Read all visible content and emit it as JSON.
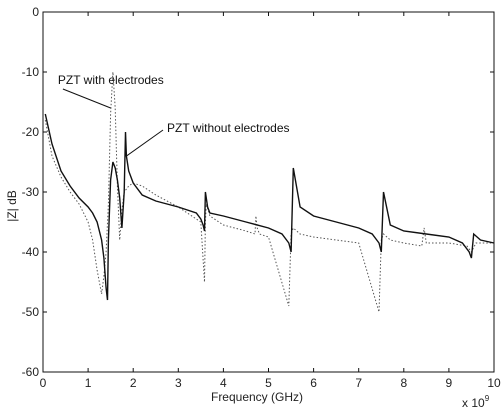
{
  "chart_data": {
    "type": "line",
    "title": "",
    "xlabel": "Frequency (GHz)",
    "ylabel": "|Z| dB",
    "x_exponent_label": "x 10",
    "x_exponent_power": "9",
    "xlim": [
      0,
      10
    ],
    "ylim": [
      -60,
      0
    ],
    "xticks": [
      "0",
      "1",
      "2",
      "3",
      "4",
      "5",
      "6",
      "7",
      "8",
      "9",
      "10"
    ],
    "yticks": [
      "0",
      "-10",
      "-20",
      "-30",
      "-40",
      "-50",
      "-60"
    ],
    "grid": false,
    "annotations": [
      {
        "text": "PZT with electrodes",
        "x": 1.55,
        "y": -12,
        "points_to": [
          1.5,
          -16
        ]
      },
      {
        "text": "PZT without electrodes",
        "x": 2.75,
        "y": -20,
        "points_to": [
          1.85,
          -24
        ]
      }
    ],
    "series": [
      {
        "name": "PZT with electrodes",
        "style": "dotted",
        "color": "#555555",
        "x": [
          0.05,
          0.2,
          0.4,
          0.6,
          0.8,
          1.0,
          1.1,
          1.2,
          1.3,
          1.35,
          1.4,
          1.45,
          1.5,
          1.55,
          1.6,
          1.65,
          1.7,
          1.75,
          1.8,
          1.9,
          2.0,
          2.2,
          2.5,
          3.0,
          3.5,
          3.58,
          3.6,
          3.62,
          3.7,
          4.0,
          4.5,
          4.7,
          4.72,
          4.75,
          4.8,
          5.0,
          5.45,
          5.5,
          5.55,
          5.7,
          6.0,
          6.5,
          7.0,
          7.45,
          7.5,
          7.55,
          7.7,
          8.0,
          8.4,
          8.45,
          8.5,
          8.7,
          9.0,
          9.4,
          9.5,
          9.6,
          9.8,
          10.0
        ],
        "y": [
          -18,
          -24,
          -27.5,
          -30,
          -32,
          -35,
          -38,
          -43,
          -47,
          -44,
          -40,
          -32,
          -17,
          -10,
          -16,
          -29,
          -38,
          -33,
          -30,
          -29,
          -28.5,
          -29,
          -30.5,
          -32.5,
          -35,
          -45,
          -35,
          -32,
          -34,
          -35.5,
          -36.5,
          -37,
          -34,
          -36,
          -37,
          -37.5,
          -49,
          -37,
          -36,
          -37,
          -37.5,
          -38,
          -38.5,
          -50,
          -38,
          -37,
          -38,
          -38.5,
          -39,
          -36,
          -38.5,
          -38.5,
          -38.5,
          -39,
          -40,
          -38.5,
          -38.5,
          -38.5
        ]
      },
      {
        "name": "PZT without electrodes",
        "style": "solid",
        "color": "#111111",
        "x": [
          0.05,
          0.2,
          0.4,
          0.6,
          0.8,
          1.0,
          1.1,
          1.2,
          1.3,
          1.35,
          1.4,
          1.43,
          1.45,
          1.5,
          1.55,
          1.6,
          1.65,
          1.7,
          1.75,
          1.8,
          1.83,
          1.85,
          1.9,
          2.0,
          2.2,
          2.5,
          3.0,
          3.4,
          3.5,
          3.55,
          3.58,
          3.6,
          3.65,
          3.7,
          4.0,
          4.5,
          5.0,
          5.3,
          5.45,
          5.5,
          5.55,
          5.7,
          6.0,
          6.5,
          7.0,
          7.3,
          7.45,
          7.5,
          7.55,
          7.7,
          8.0,
          8.5,
          9.0,
          9.3,
          9.45,
          9.5,
          9.55,
          9.7,
          10.0
        ],
        "y": [
          -17,
          -22,
          -26.5,
          -29,
          -31,
          -32.5,
          -33.5,
          -35,
          -38,
          -41,
          -46,
          -48,
          -38,
          -28,
          -25,
          -26,
          -28,
          -31,
          -36,
          -30,
          -20,
          -24,
          -26.5,
          -28.5,
          -30.5,
          -31.5,
          -32.5,
          -33.5,
          -34.5,
          -35.5,
          -36.5,
          -30,
          -32.5,
          -33.5,
          -34,
          -35,
          -36,
          -37,
          -38.5,
          -40,
          -26,
          -32.5,
          -34,
          -35,
          -36,
          -37,
          -38.5,
          -40,
          -30,
          -35.5,
          -36.5,
          -37,
          -37.5,
          -38.5,
          -40,
          -41,
          -37,
          -38,
          -38.5
        ]
      }
    ]
  }
}
